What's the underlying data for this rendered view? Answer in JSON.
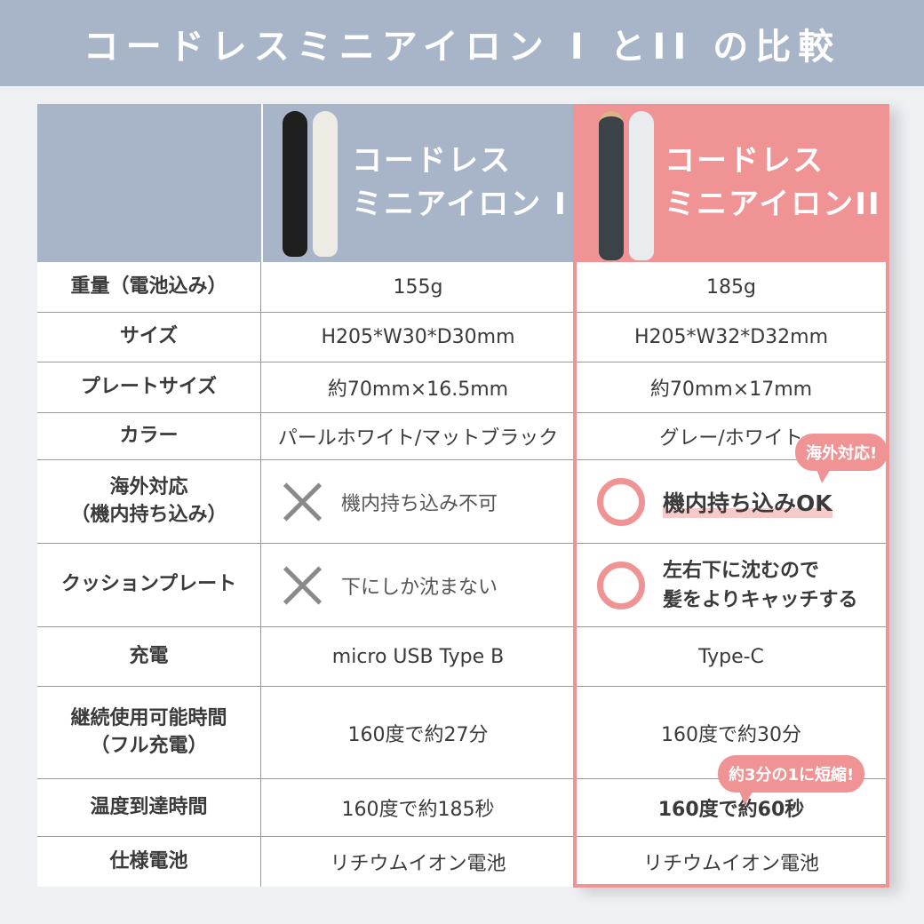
{
  "title": "コードレスミニアイロン I とII の比較",
  "colors": {
    "header_blue": "#a8b5c8",
    "accent_pink": "#ef9394"
  },
  "products": [
    {
      "name_line1": "コードレス",
      "name_line2": "ミニアイロン I"
    },
    {
      "name_line1": "コードレス",
      "name_line2": "ミニアイロンII"
    }
  ],
  "rows": [
    {
      "label": "重量（電池込み）",
      "v1": "155g",
      "v2": "185g"
    },
    {
      "label": "サイズ",
      "v1": "H205*W30*D30mm",
      "v2": "H205*W32*D32mm"
    },
    {
      "label": "プレートサイズ",
      "v1": "約70mm×16.5mm",
      "v2": "約70mm×17mm"
    },
    {
      "label": "カラー",
      "v1": "パールホワイト/マットブラック",
      "v2": "グレー/ホワイト"
    },
    {
      "label": "海外対応\n（機内持ち込み）",
      "v1": "機内持ち込み不可",
      "v2": "機内持ち込みOK",
      "mark1": "cross-icon",
      "mark2": "circle-icon"
    },
    {
      "label": "クッションプレート",
      "v1": "下にしか沈まない",
      "v2": "左右下に沈むので\n髪をよりキャッチする",
      "mark1": "cross-icon",
      "mark2": "circle-icon"
    },
    {
      "label": "充電",
      "v1": "micro USB Type B",
      "v2": "Type-C"
    },
    {
      "label": "継続使用可能時間\n（フル充電）",
      "v1": "160度で約27分",
      "v2": "160度で約30分"
    },
    {
      "label": "温度到達時間",
      "v1": "160度で約185秒",
      "v2": "160度で約60秒"
    },
    {
      "label": "仕様電池",
      "v1": "リチウムイオン電池",
      "v2": "リチウムイオン電池"
    }
  ],
  "badges": {
    "overseas": "海外対応!",
    "faster": "約3分の1に短縮!"
  }
}
